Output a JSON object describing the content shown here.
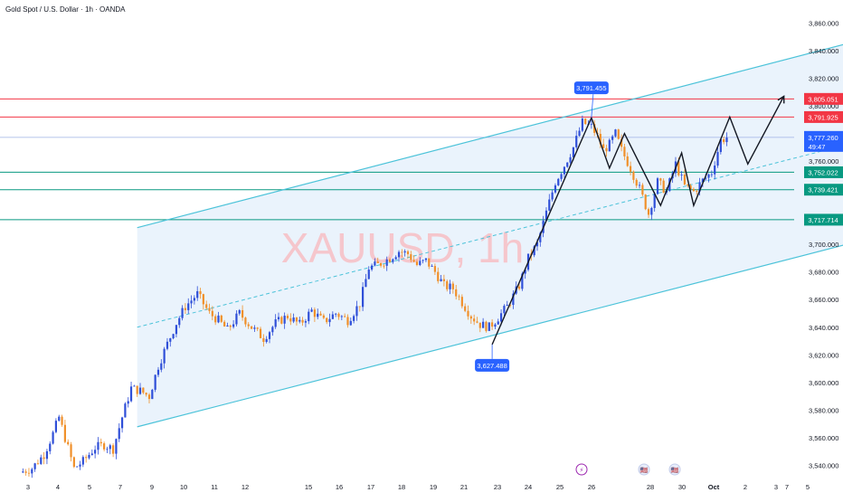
{
  "header": {
    "title": "Gold Spot / U.S. Dollar · 1h · OANDA"
  },
  "watermark": "XAUUSD, 1h",
  "colors": {
    "up": "#2f4fd8",
    "down": "#f0902a",
    "channel": "#4cc3d9",
    "channel_fill": "#eaf3fc",
    "resistance": "#f23645",
    "support": "#089981",
    "price": "#2962ff",
    "path": "#131722",
    "watermark": "#f5c6cc"
  },
  "chart_data": {
    "type": "candlestick",
    "symbol": "XAUUSD",
    "timeframe": "1h",
    "ylim": [
      3530,
      3870
    ],
    "y_ticks": [
      3540,
      3560,
      3580,
      3600,
      3620,
      3640,
      3660,
      3680,
      3700,
      3720,
      3740,
      3760,
      3780,
      3800,
      3820,
      3840,
      3860
    ],
    "y_tick_labels": [
      "3,540.000",
      "3,560.000",
      "3,580.000",
      "3,600.000",
      "3,620.000",
      "3,640.000",
      "3,660.000",
      "3,680.000",
      "3,700.000",
      "3,720.000",
      "3,740.000",
      "3,760.000",
      "3,780.000",
      "3,800.000",
      "3,820.000",
      "3,840.000",
      "3,860.000"
    ],
    "x_labels": [
      "3",
      "4",
      "5",
      "7",
      "9",
      "10",
      "11",
      "12",
      "15",
      "16",
      "17",
      "18",
      "19",
      "21",
      "23",
      "24",
      "25",
      "26",
      "28",
      "30",
      "Oct",
      "2",
      "3",
      "5",
      "7"
    ],
    "series_path": [
      [
        3.0,
        3535
      ],
      [
        3.4,
        3538
      ],
      [
        3.8,
        3548
      ],
      [
        4.1,
        3563
      ],
      [
        4.3,
        3575
      ],
      [
        4.5,
        3560
      ],
      [
        4.8,
        3538
      ],
      [
        5.1,
        3543
      ],
      [
        5.5,
        3553
      ],
      [
        5.8,
        3555
      ],
      [
        6.1,
        3552
      ],
      [
        6.4,
        3575
      ],
      [
        6.7,
        3596
      ],
      [
        7.0,
        3594
      ],
      [
        7.3,
        3590
      ],
      [
        7.6,
        3612
      ],
      [
        7.9,
        3628
      ],
      [
        8.2,
        3643
      ],
      [
        8.5,
        3655
      ],
      [
        8.9,
        3664
      ],
      [
        9.3,
        3650
      ],
      [
        9.6,
        3645
      ],
      [
        9.9,
        3638
      ],
      [
        10.3,
        3650
      ],
      [
        10.7,
        3640
      ],
      [
        11.1,
        3632
      ],
      [
        11.5,
        3643
      ],
      [
        11.9,
        3648
      ],
      [
        12.3,
        3642
      ],
      [
        12.7,
        3652
      ],
      [
        13.1,
        3644
      ],
      [
        13.5,
        3650
      ],
      [
        13.9,
        3645
      ],
      [
        14.3,
        3657
      ],
      [
        14.6,
        3683
      ],
      [
        14.9,
        3685
      ],
      [
        15.3,
        3690
      ],
      [
        15.6,
        3695
      ],
      [
        15.9,
        3693
      ],
      [
        16.2,
        3685
      ],
      [
        16.5,
        3688
      ],
      [
        16.8,
        3680
      ],
      [
        17.1,
        3670
      ],
      [
        17.4,
        3668
      ],
      [
        17.7,
        3658
      ],
      [
        18.0,
        3648
      ],
      [
        18.3,
        3642
      ],
      [
        18.6,
        3640
      ],
      [
        18.9,
        3647
      ],
      [
        19.2,
        3655
      ],
      [
        19.6,
        3670
      ],
      [
        19.9,
        3690
      ],
      [
        20.2,
        3700
      ],
      [
        20.5,
        3723
      ],
      [
        20.8,
        3745
      ],
      [
        21.1,
        3757
      ],
      [
        21.4,
        3770
      ],
      [
        21.7,
        3788
      ],
      [
        22.0,
        3785
      ],
      [
        22.2,
        3778
      ],
      [
        22.4,
        3768
      ],
      [
        22.6,
        3772
      ],
      [
        22.8,
        3780
      ],
      [
        23.0,
        3768
      ],
      [
        23.3,
        3755
      ],
      [
        23.6,
        3740
      ],
      [
        23.9,
        3722
      ],
      [
        24.2,
        3745
      ],
      [
        24.5,
        3738
      ],
      [
        24.8,
        3758
      ],
      [
        25.1,
        3742
      ],
      [
        25.4,
        3738
      ],
      [
        25.7,
        3746
      ],
      [
        26.0,
        3752
      ],
      [
        26.3,
        3775
      ],
      [
        26.5,
        3777.26
      ]
    ],
    "current_price": 3777.26,
    "countdown": "49:47",
    "levels": [
      {
        "value": 3805.051,
        "label": "3,805.051",
        "kind": "resistance"
      },
      {
        "value": 3791.925,
        "label": "3,791.925",
        "kind": "resistance"
      },
      {
        "value": 3752.022,
        "label": "3,752.022",
        "kind": "support"
      },
      {
        "value": 3739.421,
        "label": "3,739.421",
        "kind": "support"
      },
      {
        "value": 3717.714,
        "label": "3,717.714",
        "kind": "support"
      }
    ],
    "annotations": [
      {
        "label": "3,791.455",
        "x": 22.0,
        "value": 3791.455,
        "position": "above"
      },
      {
        "label": "3,627.488",
        "x": 18.7,
        "value": 3627.488,
        "position": "below"
      }
    ],
    "channel": {
      "upper": [
        [
          6.9,
          3712
        ],
        [
          30.5,
          3845
        ]
      ],
      "lower": [
        [
          6.9,
          3568
        ],
        [
          30.5,
          3700
        ]
      ],
      "mid": [
        [
          6.9,
          3640
        ],
        [
          30.5,
          3772
        ]
      ]
    },
    "projection_path": [
      [
        18.7,
        3627.488
      ],
      [
        22.0,
        3791.455
      ],
      [
        22.6,
        3755
      ],
      [
        23.1,
        3780
      ],
      [
        24.3,
        3728
      ],
      [
        25.0,
        3766
      ],
      [
        25.4,
        3728
      ],
      [
        26.6,
        3791.925
      ],
      [
        27.2,
        3758
      ],
      [
        28.4,
        3807
      ]
    ],
    "event_markers": [
      "⚡",
      "🇺🇸",
      "🇺🇸"
    ]
  }
}
